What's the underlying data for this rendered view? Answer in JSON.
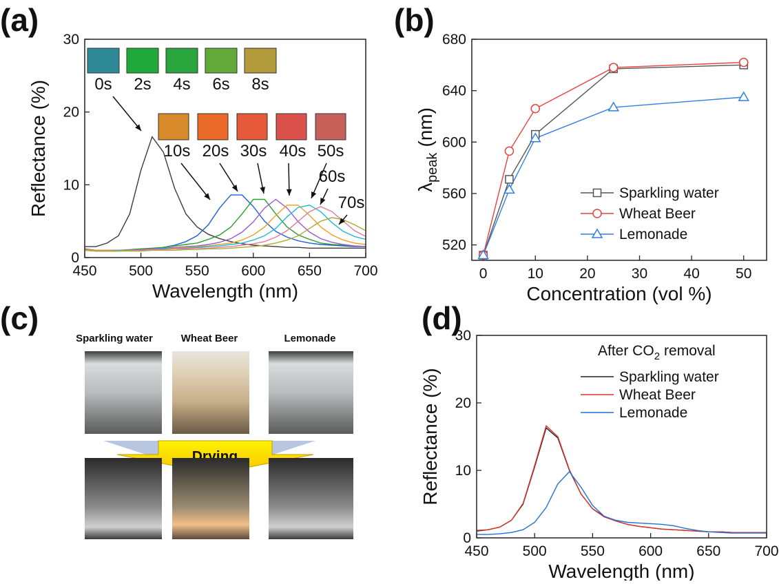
{
  "chart_data": [
    {
      "type": "line",
      "panel_label": "(a)",
      "x_label": "Wavelength (nm)",
      "y_label": "Reflectance (%)",
      "xlim": [
        450,
        700
      ],
      "xticks": [
        450,
        500,
        550,
        600,
        650,
        700
      ],
      "ylim": [
        0,
        30
      ],
      "yticks": [
        0,
        10,
        20,
        30
      ],
      "x": [
        450,
        460,
        470,
        480,
        490,
        500,
        510,
        520,
        530,
        540,
        550,
        560,
        570,
        580,
        590,
        600,
        610,
        620,
        630,
        640,
        650,
        660,
        670,
        680,
        690,
        700
      ],
      "series": [
        {
          "name": "0s",
          "color": "#3a3a3a",
          "values": [
            1.5,
            1.5,
            2.0,
            3.0,
            6.0,
            12.0,
            16.6,
            14.5,
            9.5,
            6.0,
            4.2,
            3.2,
            2.6,
            2.2,
            1.9,
            1.7,
            1.6,
            1.5,
            1.4,
            1.4,
            1.3,
            1.3,
            1.3,
            1.3,
            1.3,
            1.3
          ]
        },
        {
          "name": "10s",
          "color": "#1f5fd6",
          "values": [
            1.0,
            0.9,
            0.9,
            0.9,
            1.0,
            1.1,
            1.2,
            1.4,
            1.7,
            2.2,
            3.0,
            4.5,
            6.8,
            8.6,
            8.6,
            7.0,
            5.0,
            3.6,
            2.8,
            2.3,
            2.0,
            1.8,
            1.7,
            1.6,
            1.5,
            1.5
          ]
        },
        {
          "name": "20s",
          "color": "#2ca02c",
          "values": [
            1.2,
            1.0,
            1.0,
            1.0,
            1.1,
            1.2,
            1.3,
            1.4,
            1.6,
            1.8,
            2.0,
            2.5,
            3.1,
            4.2,
            6.0,
            8.0,
            8.0,
            6.0,
            4.2,
            3.1,
            2.5,
            2.0,
            1.8,
            1.7,
            1.6,
            1.5
          ]
        },
        {
          "name": "30s",
          "color": "#9b59d0",
          "values": [
            1.2,
            1.0,
            1.0,
            1.0,
            1.0,
            1.1,
            1.2,
            1.3,
            1.4,
            1.5,
            1.6,
            1.8,
            2.1,
            2.6,
            3.5,
            4.9,
            6.8,
            8.0,
            6.8,
            4.9,
            3.5,
            2.6,
            2.1,
            1.8,
            1.6,
            1.5
          ]
        },
        {
          "name": "40s",
          "color": "#e8a020",
          "values": [
            1.1,
            1.0,
            1.0,
            1.0,
            1.0,
            1.0,
            1.1,
            1.2,
            1.3,
            1.4,
            1.5,
            1.6,
            1.8,
            2.0,
            2.4,
            3.1,
            4.2,
            5.8,
            7.2,
            7.2,
            5.8,
            4.2,
            3.1,
            2.4,
            2.0,
            1.8
          ]
        },
        {
          "name": "50s",
          "color": "#20b8d8",
          "values": [
            1.0,
            0.9,
            0.9,
            1.0,
            1.0,
            1.0,
            1.1,
            1.2,
            1.2,
            1.3,
            1.4,
            1.5,
            1.6,
            1.8,
            2.0,
            2.4,
            3.0,
            4.0,
            5.6,
            6.9,
            7.2,
            6.3,
            4.8,
            3.6,
            2.9,
            2.5
          ]
        },
        {
          "name": "60s",
          "color": "#e07aa0",
          "values": [
            1.0,
            0.9,
            0.9,
            0.9,
            1.0,
            1.0,
            1.1,
            1.1,
            1.2,
            1.2,
            1.3,
            1.3,
            1.4,
            1.5,
            1.7,
            1.9,
            2.2,
            2.8,
            3.7,
            5.0,
            6.3,
            7.0,
            6.3,
            5.0,
            3.7,
            2.9
          ]
        },
        {
          "name": "70s",
          "color": "#b0a830",
          "values": [
            1.0,
            0.9,
            0.9,
            0.9,
            0.9,
            0.9,
            1.0,
            1.0,
            1.0,
            1.1,
            1.1,
            1.2,
            1.2,
            1.3,
            1.4,
            1.5,
            1.7,
            2.0,
            2.4,
            3.0,
            4.0,
            5.0,
            5.5,
            5.2,
            4.5,
            3.7
          ]
        }
      ],
      "swatch_labels": [
        "2s",
        "4s",
        "6s",
        "8s"
      ]
    },
    {
      "type": "line",
      "panel_label": "(b)",
      "x_label": "Concentration (vol %)",
      "y_label": "λ",
      "y_label_sub": "peak",
      "y_label_unit": "(nm)",
      "xlim": [
        -2.2,
        54.4
      ],
      "xticks": [
        0,
        10,
        20,
        30,
        40,
        50
      ],
      "ylim": [
        508,
        680
      ],
      "yticks": [
        520,
        560,
        600,
        640,
        680
      ],
      "x": [
        0,
        5,
        10,
        25,
        50
      ],
      "legend": "lower right",
      "series": [
        {
          "name": "Sparkling water",
          "color": "#555555",
          "marker": "square",
          "values": [
            512,
            571,
            606,
            657,
            660
          ]
        },
        {
          "name": "Wheat Beer",
          "color": "#e8403a",
          "marker": "circle",
          "values": [
            512,
            593,
            626,
            658,
            662
          ]
        },
        {
          "name": "Lemonade",
          "color": "#2f7fe0",
          "marker": "triangle",
          "values": [
            512,
            563,
            603,
            627,
            635
          ]
        }
      ]
    },
    {
      "type": "line",
      "panel_label": "(d)",
      "x_label": "Wavelength (nm)",
      "y_label": "Reflectance (%)",
      "note": "After CO",
      "note_sub": "2",
      "note_rest": "removal",
      "xlim": [
        450,
        700
      ],
      "xticks": [
        450,
        500,
        550,
        600,
        650,
        700
      ],
      "ylim": [
        0,
        30
      ],
      "yticks": [
        0,
        10,
        20,
        30
      ],
      "x": [
        450,
        460,
        470,
        480,
        490,
        500,
        510,
        520,
        530,
        540,
        550,
        560,
        570,
        580,
        590,
        600,
        610,
        620,
        630,
        640,
        650,
        660,
        670,
        680,
        690,
        700
      ],
      "legend": "upper right",
      "series": [
        {
          "name": "Sparkling water",
          "color": "#222222",
          "values": [
            1.0,
            1.2,
            1.6,
            2.6,
            5.0,
            10.5,
            16.3,
            14.8,
            10.0,
            6.5,
            4.3,
            3.2,
            2.5,
            2.0,
            1.7,
            1.5,
            1.3,
            1.2,
            1.1,
            1.0,
            0.9,
            0.9,
            0.8,
            0.8,
            0.8,
            0.8
          ]
        },
        {
          "name": "Wheat Beer",
          "color": "#e0302a",
          "values": [
            1.1,
            1.2,
            1.6,
            2.6,
            5.1,
            10.7,
            16.6,
            15.0,
            10.1,
            6.5,
            4.3,
            3.1,
            2.5,
            2.0,
            1.7,
            1.5,
            1.3,
            1.2,
            1.1,
            1.0,
            0.9,
            0.9,
            0.8,
            0.8,
            0.8,
            0.8
          ]
        },
        {
          "name": "Lemonade",
          "color": "#1f6fd8",
          "values": [
            0.5,
            0.5,
            0.6,
            0.8,
            1.2,
            2.3,
            4.5,
            8.0,
            9.8,
            7.5,
            4.8,
            3.2,
            2.6,
            2.3,
            2.2,
            2.1,
            2.0,
            1.8,
            1.4,
            1.1,
            0.9,
            0.8,
            0.7,
            0.7,
            0.7,
            0.7
          ]
        }
      ]
    }
  ],
  "photo_panel": {
    "panel_label": "(c)",
    "captions": [
      "Sparkling water",
      "Wheat Beer",
      "Lemonade"
    ],
    "arrow_text": "Drying"
  }
}
